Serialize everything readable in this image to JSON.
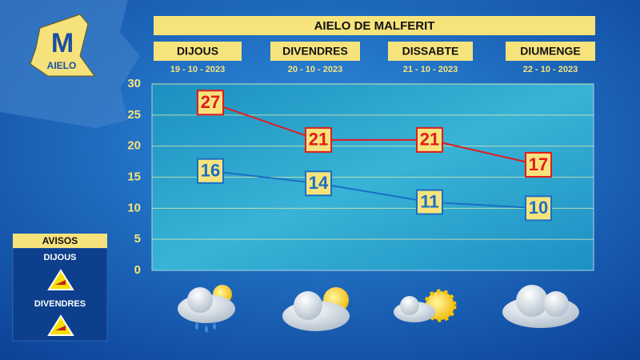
{
  "logo": {
    "mark": "M",
    "name": "AIELO"
  },
  "chart_data": {
    "type": "line",
    "title": "AIELO DE MALFERIT",
    "categories": [
      "DIJOUS",
      "DIVENDRES",
      "DISSABTE",
      "DIUMENGE"
    ],
    "dates": [
      "19 - 10 - 2023",
      "20 - 10 - 2023",
      "21 - 10 - 2023",
      "22 - 10 - 2023"
    ],
    "series": [
      {
        "color": "#e31b1b",
        "values": [
          27,
          21,
          21,
          17
        ]
      },
      {
        "color": "#1a6fc4",
        "values": [
          16,
          14,
          11,
          10
        ]
      }
    ],
    "ylim": [
      0,
      30
    ],
    "yticks": [
      0,
      5,
      10,
      15,
      20,
      25,
      30
    ],
    "grid": true
  },
  "warnings": {
    "title": "AVISOS",
    "days": [
      "DIJOUS",
      "DIVENDRES"
    ]
  }
}
